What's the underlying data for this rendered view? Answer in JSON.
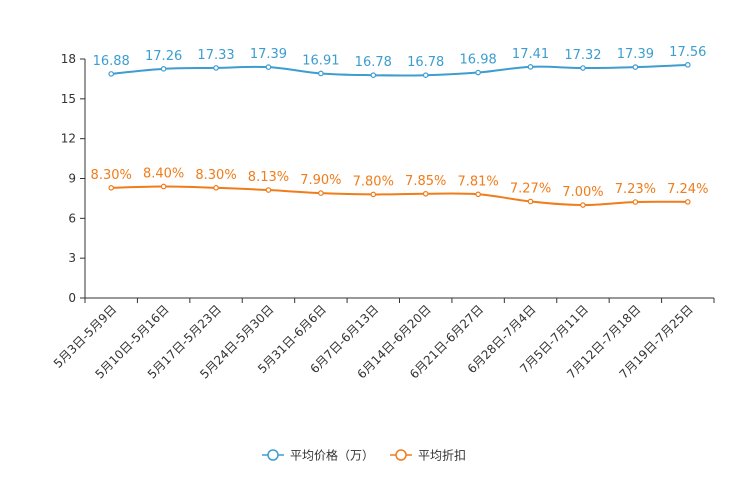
{
  "chart_data": {
    "type": "line",
    "title": "",
    "xlabel": "",
    "ylabel": "",
    "ylim": [
      0,
      18
    ],
    "yticks": [
      0,
      3,
      6,
      9,
      12,
      15,
      18
    ],
    "grid": false,
    "legend_position": "bottom-center",
    "categories": [
      "5月3日-5月9日",
      "5月10日-5月16日",
      "5月17日-5月23日",
      "5月24日-5月30日",
      "5月31日-6月6日",
      "6月7日-6月13日",
      "6月14日-6月20日",
      "6月21日-6月27日",
      "6月28日-7月4日",
      "7月5日-7月11日",
      "7月12日-7月18日",
      "7月19日-7月25日"
    ],
    "series": [
      {
        "name": "平均价格（万）",
        "color": "#3d9dd0",
        "values": [
          16.88,
          17.26,
          17.33,
          17.39,
          16.91,
          16.78,
          16.78,
          16.98,
          17.41,
          17.32,
          17.39,
          17.56
        ],
        "labels": [
          "16.88",
          "17.26",
          "17.33",
          "17.39",
          "16.91",
          "16.78",
          "16.78",
          "16.98",
          "17.41",
          "17.32",
          "17.39",
          "17.56"
        ]
      },
      {
        "name": "平均折扣",
        "color": "#f07c1a",
        "values": [
          8.3,
          8.4,
          8.3,
          8.13,
          7.9,
          7.8,
          7.85,
          7.81,
          7.27,
          7.0,
          7.23,
          7.24
        ],
        "labels": [
          "8.30%",
          "8.40%",
          "8.30%",
          "8.13%",
          "7.90%",
          "7.80%",
          "7.85%",
          "7.81%",
          "7.27%",
          "7.00%",
          "7.23%",
          "7.24%"
        ]
      }
    ]
  }
}
